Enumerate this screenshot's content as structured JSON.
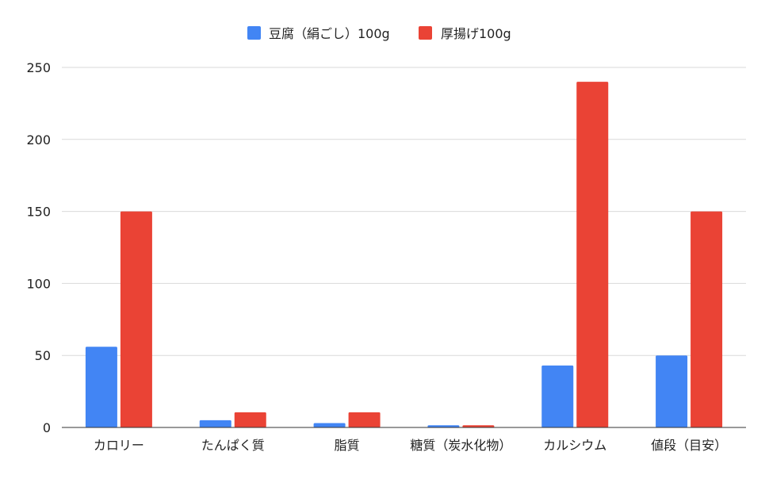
{
  "chart_data": {
    "type": "bar",
    "title": "",
    "xlabel": "",
    "ylabel": "",
    "categories": [
      "カロリー",
      "たんぱく質",
      "脂質",
      "糖質（炭水化物）",
      "カルシウム",
      "値段（目安）"
    ],
    "series": [
      {
        "name": "豆腐（絹ごし）100g",
        "color": "#4285F4",
        "values": [
          56,
          5,
          3,
          1.5,
          43,
          50
        ]
      },
      {
        "name": "厚揚げ100g",
        "color": "#EA4335",
        "values": [
          150,
          10.5,
          10.5,
          1.5,
          240,
          150
        ]
      }
    ],
    "ylim": [
      0,
      250
    ],
    "yticks": [
      0,
      50,
      100,
      150,
      200,
      250
    ],
    "grid": true,
    "legend_position": "top-center"
  }
}
